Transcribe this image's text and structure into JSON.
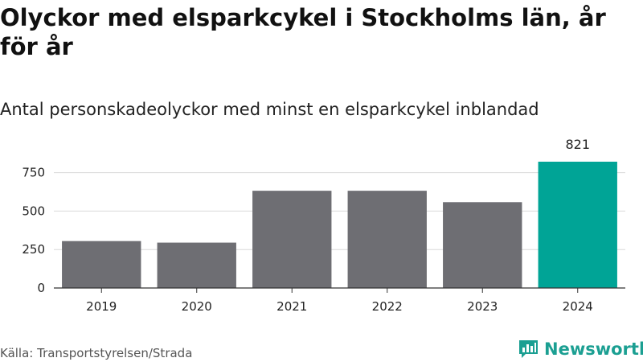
{
  "header": {
    "title": "Olyckor med elsparkcykel i Stockholms län, år för år",
    "subtitle": "Antal personskadeolyckor med minst en elsparkcykel inblandad"
  },
  "footer": {
    "source": "Källa: Transportstyrelsen/Strada",
    "brand": "Newsworthy"
  },
  "colors": {
    "bar_default": "#6e6e73",
    "bar_highlight": "#00a496",
    "grid": "#d9d9d9",
    "axis": "#333333",
    "brand": "#1b9f92"
  },
  "chart_data": {
    "type": "bar",
    "categories": [
      "2019",
      "2020",
      "2021",
      "2022",
      "2023",
      "2024"
    ],
    "values": [
      305,
      295,
      632,
      632,
      558,
      821
    ],
    "highlight_index": 5,
    "data_labels": {
      "5": "821"
    },
    "ylim": [
      0,
      821
    ],
    "yticks": [
      0,
      250,
      500,
      750
    ],
    "grid": true,
    "legend": "none"
  }
}
